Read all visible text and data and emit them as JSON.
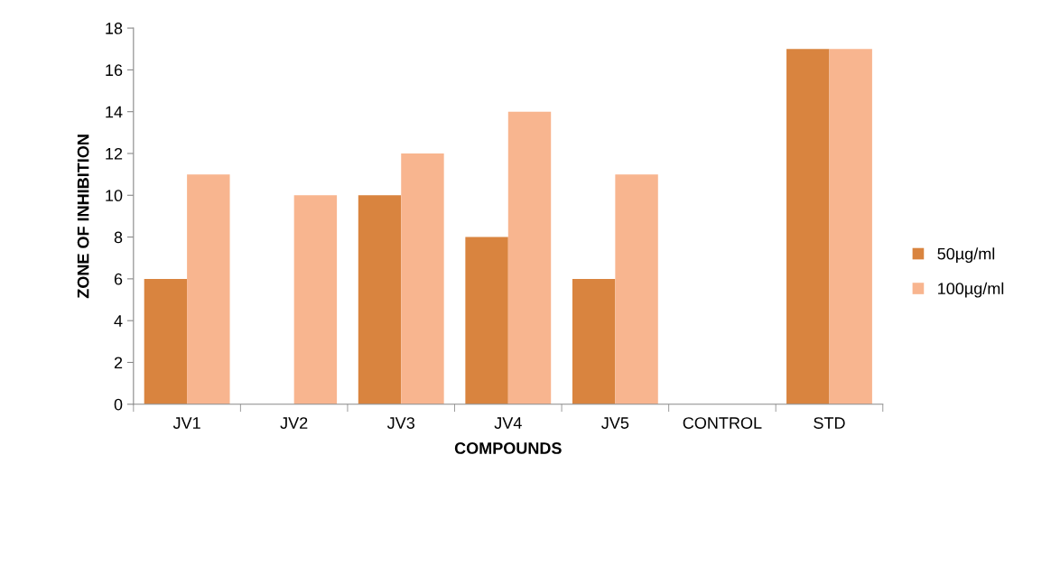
{
  "chart_data": {
    "type": "bar",
    "xlabel": "COMPOUNDS",
    "ylabel": "ZONE OF INHIBITION",
    "categories": [
      "JV1",
      "JV2",
      "JV3",
      "JV4",
      "JV5",
      "CONTROL",
      "STD"
    ],
    "series": [
      {
        "name": "50µg/ml",
        "color": "#d9843f",
        "values": [
          6,
          0,
          10,
          8,
          6,
          0,
          17
        ]
      },
      {
        "name": "100µg/ml",
        "color": "#f8b58f",
        "values": [
          11,
          10,
          12,
          14,
          11,
          0,
          17
        ]
      }
    ],
    "ylim": [
      0,
      18
    ],
    "yticks": [
      0,
      2,
      4,
      6,
      8,
      10,
      12,
      14,
      16,
      18
    ],
    "grid": false,
    "legend": "right"
  }
}
